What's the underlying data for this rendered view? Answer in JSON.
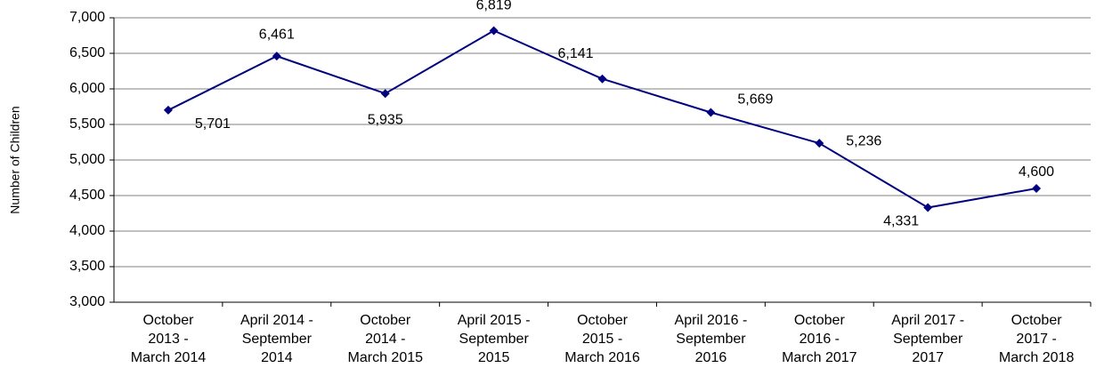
{
  "chart_data": {
    "type": "line",
    "y_label": "Number of Children",
    "categories": [
      "October\n2013 -\nMarch 2014",
      "April 2014 -\nSeptember\n2014",
      "October\n2014 -\nMarch 2015",
      "April 2015 -\nSeptember\n2015",
      "October\n2015 -\nMarch 2016",
      "April 2016 -\nSeptember\n2016",
      "October\n2016 -\nMarch 2017",
      "April 2017 -\nSeptember\n2017",
      "October\n2017 -\nMarch 2018"
    ],
    "series": [
      {
        "name": "Number of Children",
        "color": "#000080",
        "values": [
          5701,
          6461,
          5935,
          6819,
          6141,
          5669,
          5236,
          4331,
          4600
        ],
        "value_labels": [
          "5,701",
          "6,461",
          "5,935",
          "6,819",
          "6,141",
          "5,669",
          "5,236",
          "4,331",
          "4,600"
        ]
      }
    ],
    "ylim": [
      3000,
      7000
    ],
    "yticks": [
      {
        "value": 3000,
        "label": "3,000"
      },
      {
        "value": 3500,
        "label": "3,500"
      },
      {
        "value": 4000,
        "label": "4,000"
      },
      {
        "value": 4500,
        "label": "4,500"
      },
      {
        "value": 5000,
        "label": "5,000"
      },
      {
        "value": 5500,
        "label": "5,500"
      },
      {
        "value": 6000,
        "label": "6,000"
      },
      {
        "value": 6500,
        "label": "6,500"
      },
      {
        "value": 7000,
        "label": "7,000"
      }
    ],
    "grid": true
  }
}
